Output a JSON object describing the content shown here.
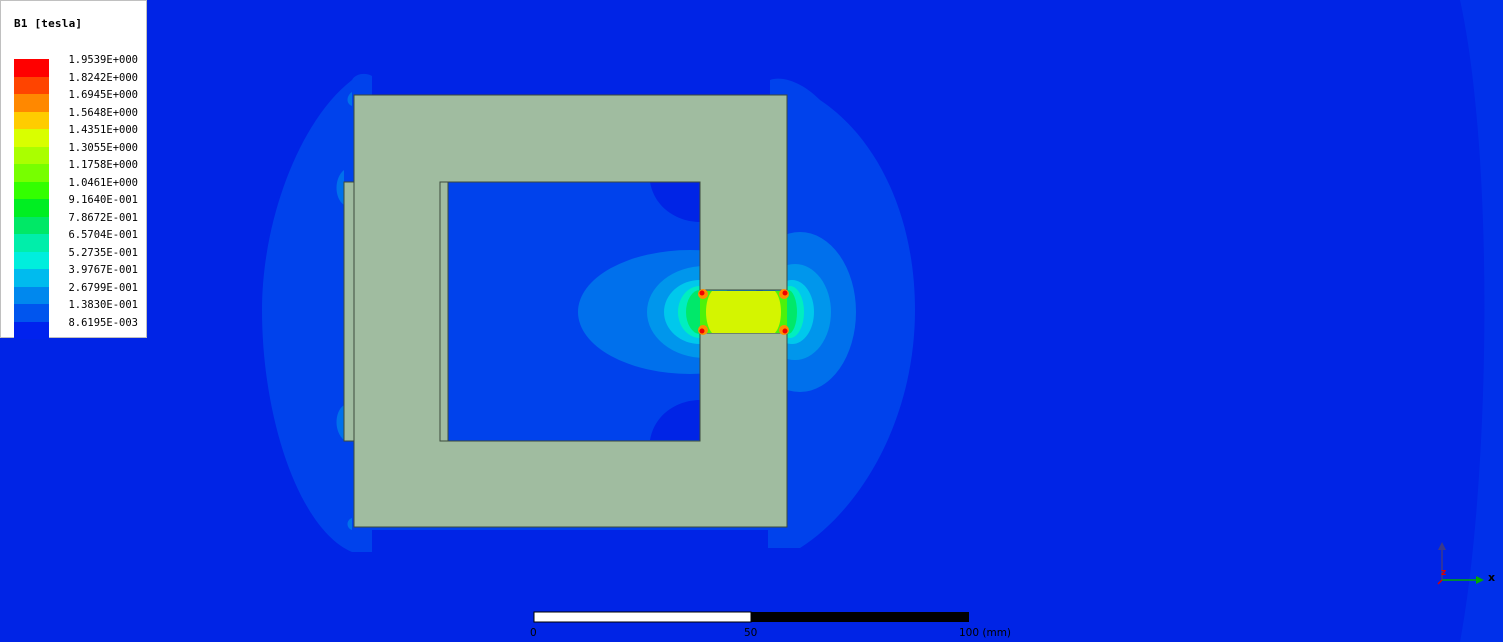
{
  "legend": {
    "title": "B1 [tesla]",
    "entries": [
      {
        "value": "1.9539E+000",
        "color": "#ff0000"
      },
      {
        "value": "1.8242E+000",
        "color": "#ff4400"
      },
      {
        "value": "1.6945E+000",
        "color": "#ff8800"
      },
      {
        "value": "1.5648E+000",
        "color": "#ffcc00"
      },
      {
        "value": "1.4351E+000",
        "color": "#d9ff00"
      },
      {
        "value": "1.3055E+000",
        "color": "#aaff00"
      },
      {
        "value": "1.1758E+000",
        "color": "#77ff00"
      },
      {
        "value": "1.0461E+000",
        "color": "#33ff00"
      },
      {
        "value": "9.1640E-001",
        "color": "#00ee22"
      },
      {
        "value": "7.8672E-001",
        "color": "#00e866"
      },
      {
        "value": "6.5704E-001",
        "color": "#00eeaa"
      },
      {
        "value": "5.2735E-001",
        "color": "#00eedd"
      },
      {
        "value": "3.9767E-001",
        "color": "#00bbee"
      },
      {
        "value": "2.6799E-001",
        "color": "#0088ee"
      },
      {
        "value": "1.3830E-001",
        "color": "#0055ee"
      },
      {
        "value": "8.6195E-003",
        "color": "#0022ee"
      }
    ]
  },
  "scale_bar": {
    "labels": [
      "0",
      "50",
      "100 (mm)"
    ]
  },
  "triad": {
    "x_label": "x",
    "z_label": "z"
  },
  "colors": {
    "background": "#0024e6",
    "core": "#a0bca0",
    "core_edge": "#3c4a3c",
    "level1": "#0042ec",
    "level2": "#0070ec",
    "level3": "#0096ec",
    "level4": "#00c8ec",
    "level5": "#00eec0",
    "level6": "#00e86a",
    "level7": "#4cf20a",
    "level8": "#d4f500",
    "level9": "#ff8c00",
    "level10": "#ee0000"
  }
}
